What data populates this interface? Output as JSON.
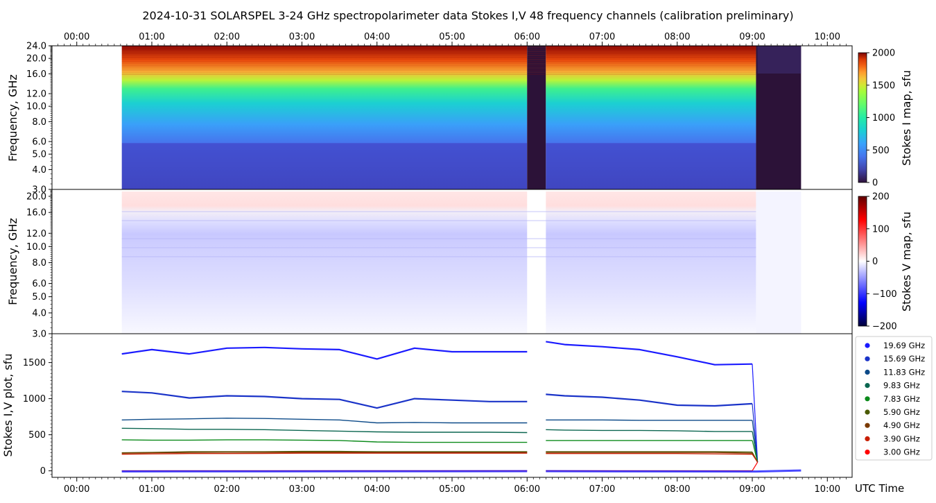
{
  "title": "2024-10-31  SOLARSPEL  3-24 GHz spectropolarimeter data   Stokes I,V   48 frequency channels   (calibration preliminary)",
  "x_axis": {
    "label": "UTC Time",
    "range_hours": [
      -0.33,
      10.33
    ],
    "ticks": [
      0,
      1,
      2,
      3,
      4,
      5,
      6,
      7,
      8,
      9,
      10
    ],
    "tick_labels": [
      "00:00",
      "01:00",
      "02:00",
      "03:00",
      "04:00",
      "05:00",
      "06:00",
      "07:00",
      "08:00",
      "09:00",
      "10:00"
    ]
  },
  "observation": {
    "start_hour": 0.6,
    "end_hour": 9.65,
    "gaps": [
      [
        6.0,
        6.25
      ]
    ],
    "instrument_drop_hour": 9.05
  },
  "panel_i": {
    "ylabel": "Frequency, GHz",
    "ylim": [
      3.0,
      24.0
    ],
    "ticks": [
      3.0,
      4.0,
      5.0,
      6.0,
      8.0,
      10.0,
      12.0,
      16.0,
      20.0,
      24.0
    ],
    "colorbar_label": "Stokes I map, sfu",
    "colorbar_ticks": [
      0,
      500,
      1000,
      1500,
      2000
    ],
    "colorbar_range": [
      0,
      2000
    ]
  },
  "panel_v": {
    "ylabel": "Frequency, GHz",
    "ylim": [
      3.0,
      22.0
    ],
    "ticks": [
      3.0,
      4.0,
      5.0,
      6.0,
      8.0,
      10.0,
      12.0,
      16.0,
      20.0
    ],
    "colorbar_label": "Stokes V map, sfu",
    "colorbar_ticks": [
      -200,
      -100,
      0,
      100,
      200
    ],
    "colorbar_range": [
      -200,
      200
    ]
  },
  "panel_plot": {
    "ylabel": "Stokes I,V plot, sfu",
    "ylim": [
      -90,
      1900
    ],
    "ticks": [
      0,
      500,
      1000,
      1500
    ]
  },
  "chart_data": {
    "type": "line",
    "title": "2024-10-31  SOLARSPEL  3-24 GHz spectropolarimeter data   Stokes I,V   48 frequency channels   (calibration preliminary)",
    "xlabel": "UTC Time",
    "ylabel": "Stokes I,V plot, sfu",
    "x": [
      0.6,
      1.0,
      1.5,
      2.0,
      2.5,
      3.0,
      3.5,
      4.0,
      4.5,
      5.0,
      5.5,
      6.0,
      6.25,
      6.5,
      7.0,
      7.5,
      8.0,
      8.5,
      9.0
    ],
    "series": [
      {
        "name": "19.69 GHz",
        "color": "#1a1aff",
        "values": [
          1620,
          1680,
          1620,
          1700,
          1710,
          1690,
          1680,
          1550,
          1700,
          1650,
          1650,
          1650,
          1790,
          1750,
          1720,
          1680,
          1580,
          1470,
          1480
        ]
      },
      {
        "name": "15.69 GHz",
        "color": "#1a33c8",
        "values": [
          1100,
          1080,
          1010,
          1040,
          1030,
          1000,
          990,
          870,
          1000,
          980,
          960,
          960,
          1060,
          1040,
          1020,
          980,
          910,
          900,
          930
        ]
      },
      {
        "name": "11.83 GHz",
        "color": "#0c4a88",
        "values": [
          705,
          715,
          720,
          730,
          725,
          715,
          705,
          665,
          670,
          665,
          665,
          665,
          705,
          705,
          705,
          700,
          700,
          700,
          700
        ]
      },
      {
        "name": "9.83 GHz",
        "color": "#0b6650",
        "values": [
          590,
          585,
          575,
          575,
          570,
          560,
          550,
          540,
          535,
          535,
          535,
          530,
          570,
          565,
          560,
          560,
          555,
          545,
          545
        ]
      },
      {
        "name": "7.83 GHz",
        "color": "#0b8a1a",
        "values": [
          430,
          425,
          425,
          430,
          430,
          425,
          420,
          400,
          395,
          395,
          395,
          395,
          420,
          420,
          420,
          420,
          420,
          420,
          420
        ]
      },
      {
        "name": "5.90 GHz",
        "color": "#4a5a00",
        "values": [
          250,
          255,
          265,
          265,
          265,
          270,
          270,
          265,
          265,
          265,
          265,
          265,
          265,
          265,
          265,
          265,
          265,
          265,
          260
        ]
      },
      {
        "name": "4.90 GHz",
        "color": "#7a3a00",
        "values": [
          245,
          250,
          255,
          258,
          258,
          258,
          258,
          255,
          255,
          255,
          255,
          255,
          255,
          255,
          255,
          255,
          255,
          255,
          245
        ]
      },
      {
        "name": "3.90 GHz",
        "color": "#c81e00",
        "values": [
          230,
          235,
          240,
          240,
          242,
          245,
          245,
          245,
          245,
          245,
          245,
          245,
          240,
          240,
          240,
          240,
          240,
          235,
          230
        ]
      },
      {
        "name": "3.00 GHz",
        "color": "#ff0000",
        "values": [
          0,
          0,
          0,
          0,
          0,
          0,
          0,
          0,
          0,
          0,
          0,
          0,
          0,
          0,
          0,
          0,
          0,
          0,
          0
        ]
      }
    ],
    "ylim": [
      -90,
      1900
    ]
  }
}
